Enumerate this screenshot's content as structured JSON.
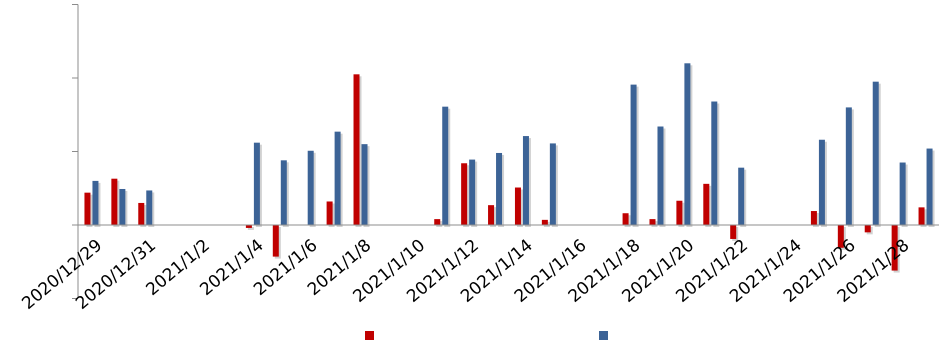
{
  "chart_data": {
    "type": "bar",
    "title": "",
    "xlabel": "",
    "ylabel": "",
    "ylim": [
      -1.0,
      3.0
    ],
    "grid": false,
    "legend_position": "bottom",
    "x_tick_labels": [
      "2020/12/29",
      "2020/12/31",
      "2021/1/2",
      "2021/1/4",
      "2021/1/6",
      "2021/1/8",
      "2021/1/10",
      "2021/1/12",
      "2021/1/14",
      "2021/1/16",
      "2021/1/18",
      "2021/1/20",
      "2021/1/22",
      "2021/1/24",
      "2021/1/26",
      "2021/1/28"
    ],
    "categories": [
      "2020/12/29",
      "2020/12/30",
      "2020/12/31",
      "2021/1/1",
      "2021/1/2",
      "2021/1/3",
      "2021/1/4",
      "2021/1/5",
      "2021/1/6",
      "2021/1/7",
      "2021/1/8",
      "2021/1/9",
      "2021/1/10",
      "2021/1/11",
      "2021/1/12",
      "2021/1/13",
      "2021/1/14",
      "2021/1/15",
      "2021/1/16",
      "2021/1/17",
      "2021/1/18",
      "2021/1/19",
      "2021/1/20",
      "2021/1/21",
      "2021/1/22",
      "2021/1/23",
      "2021/1/24",
      "2021/1/25",
      "2021/1/26",
      "2021/1/27",
      "2021/1/28",
      "2021/1/29"
    ],
    "series": [
      {
        "color": "#c00000",
        "values": [
          0.44,
          0.63,
          0.3,
          null,
          null,
          null,
          -0.04,
          -0.43,
          null,
          0.32,
          2.05,
          null,
          null,
          0.08,
          0.84,
          0.27,
          0.51,
          0.07,
          null,
          null,
          0.16,
          0.08,
          0.33,
          0.56,
          -0.19,
          null,
          null,
          0.19,
          -0.31,
          -0.1,
          -0.62,
          0.24
        ]
      },
      {
        "color": "#3c6396",
        "values": [
          0.6,
          0.49,
          0.47,
          null,
          null,
          null,
          1.12,
          0.88,
          1.01,
          1.27,
          1.1,
          null,
          null,
          1.61,
          0.89,
          0.98,
          1.21,
          1.11,
          null,
          null,
          1.91,
          1.34,
          2.2,
          1.68,
          0.78,
          null,
          null,
          1.16,
          1.6,
          1.95,
          0.85,
          1.04
        ]
      }
    ]
  }
}
